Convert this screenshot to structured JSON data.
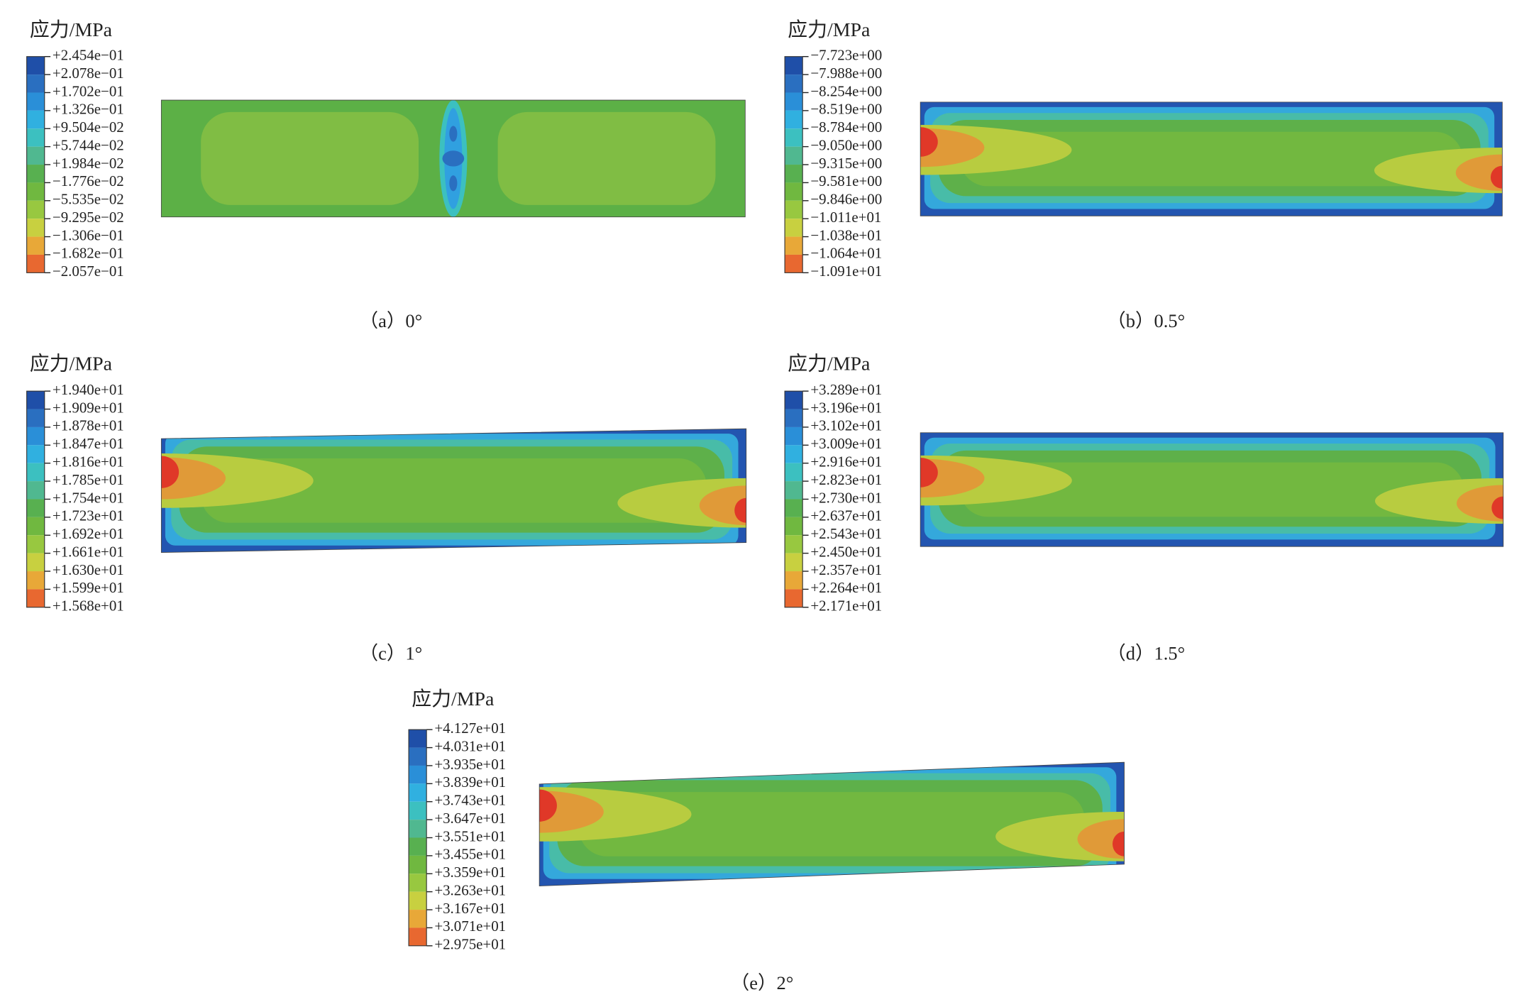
{
  "panels": [
    {
      "legend_title": "应力/MPa",
      "labels": [
        "+2.454e−01",
        "+2.078e−01",
        "+1.702e−01",
        "+1.326e−01",
        "+9.504e−02",
        "+5.744e−02",
        "+1.984e−02",
        "−1.776e−02",
        "−5.535e−02",
        "−9.295e−02",
        "−1.306e−01",
        "−1.682e−01",
        "−2.057e−01"
      ],
      "caption": "（a）0°"
    },
    {
      "legend_title": "应力/MPa",
      "labels": [
        "−7.723e+00",
        "−7.988e+00",
        "−8.254e+00",
        "−8.519e+00",
        "−8.784e+00",
        "−9.050e+00",
        "−9.315e+00",
        "−9.581e+00",
        "−9.846e+00",
        "−1.011e+01",
        "−1.038e+01",
        "−1.064e+01",
        "−1.091e+01"
      ],
      "caption": "（b）0.5°"
    },
    {
      "legend_title": "应力/MPa",
      "labels": [
        "+1.940e+01",
        "+1.909e+01",
        "+1.878e+01",
        "+1.847e+01",
        "+1.816e+01",
        "+1.785e+01",
        "+1.754e+01",
        "+1.723e+01",
        "+1.692e+01",
        "+1.661e+01",
        "+1.630e+01",
        "+1.599e+01",
        "+1.568e+01"
      ],
      "caption": "（c）1°"
    },
    {
      "legend_title": "应力/MPa",
      "labels": [
        "+3.289e+01",
        "+3.196e+01",
        "+3.102e+01",
        "+3.009e+01",
        "+2.916e+01",
        "+2.823e+01",
        "+2.730e+01",
        "+2.637e+01",
        "+2.543e+01",
        "+2.450e+01",
        "+2.357e+01",
        "+2.264e+01",
        "+2.171e+01"
      ],
      "caption": "（d）1.5°"
    },
    {
      "legend_title": "应力/MPa",
      "labels": [
        "+4.127e+01",
        "+4.031e+01",
        "+3.935e+01",
        "+3.839e+01",
        "+3.743e+01",
        "+3.647e+01",
        "+3.551e+01",
        "+3.455e+01",
        "+3.359e+01",
        "+3.263e+01",
        "+3.167e+01",
        "+3.071e+01",
        "+2.975e+01"
      ],
      "caption": "（e）2°"
    }
  ]
}
